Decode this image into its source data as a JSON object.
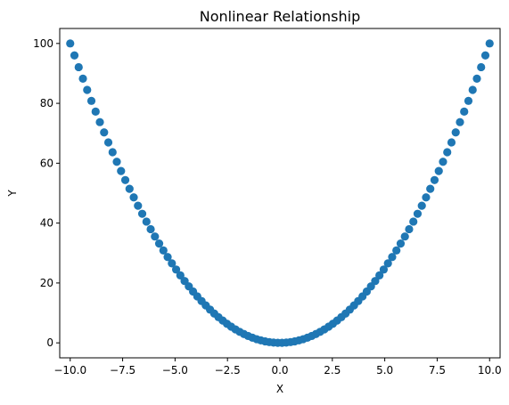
{
  "chart_data": {
    "type": "scatter",
    "title": "Nonlinear Relationship",
    "xlabel": "X",
    "ylabel": "Y",
    "xlim": [
      -10.5,
      10.5
    ],
    "ylim": [
      -5,
      105
    ],
    "xticks": [
      -10.0,
      -7.5,
      -5.0,
      -2.5,
      0.0,
      2.5,
      5.0,
      7.5,
      10.0
    ],
    "xtick_labels": [
      "−10.0",
      "−7.5",
      "−5.0",
      "−2.5",
      "0.0",
      "2.5",
      "5.0",
      "7.5",
      "10.0"
    ],
    "yticks": [
      0,
      20,
      40,
      60,
      80,
      100
    ],
    "ytick_labels": [
      "0",
      "20",
      "40",
      "60",
      "80",
      "100"
    ],
    "grid": false,
    "marker_color": "#1f77b4",
    "x": [
      -10.0,
      -9.798,
      -9.596,
      -9.394,
      -9.192,
      -8.99,
      -8.788,
      -8.586,
      -8.384,
      -8.182,
      -7.98,
      -7.778,
      -7.576,
      -7.374,
      -7.172,
      -6.97,
      -6.768,
      -6.566,
      -6.364,
      -6.162,
      -5.96,
      -5.758,
      -5.556,
      -5.354,
      -5.152,
      -4.949,
      -4.747,
      -4.545,
      -4.343,
      -4.141,
      -3.939,
      -3.737,
      -3.535,
      -3.333,
      -3.131,
      -2.929,
      -2.727,
      -2.525,
      -2.323,
      -2.121,
      -1.919,
      -1.717,
      -1.515,
      -1.313,
      -1.111,
      -0.909,
      -0.707,
      -0.505,
      -0.303,
      -0.101,
      0.101,
      0.303,
      0.505,
      0.707,
      0.909,
      1.111,
      1.313,
      1.515,
      1.717,
      1.919,
      2.121,
      2.323,
      2.525,
      2.727,
      2.929,
      3.131,
      3.333,
      3.535,
      3.737,
      3.939,
      4.141,
      4.343,
      4.545,
      4.747,
      4.949,
      5.152,
      5.354,
      5.556,
      5.758,
      5.96,
      6.162,
      6.364,
      6.566,
      6.768,
      6.97,
      7.172,
      7.374,
      7.576,
      7.778,
      7.98,
      8.182,
      8.384,
      8.586,
      8.788,
      8.99,
      9.192,
      9.394,
      9.596,
      9.798,
      10.0
    ],
    "y": [
      100.0,
      96.0,
      92.08,
      88.25,
      84.49,
      80.82,
      77.23,
      73.72,
      70.29,
      66.94,
      63.68,
      60.49,
      57.39,
      54.37,
      51.44,
      48.58,
      45.81,
      43.11,
      40.5,
      37.97,
      35.52,
      33.16,
      30.86,
      28.66,
      26.54,
      24.49,
      22.53,
      20.66,
      18.86,
      17.15,
      15.52,
      13.97,
      12.5,
      11.11,
      9.8,
      8.58,
      7.44,
      6.38,
      5.4,
      4.5,
      3.68,
      2.95,
      2.3,
      1.72,
      1.23,
      0.83,
      0.5,
      0.26,
      0.09,
      0.01,
      0.01,
      0.09,
      0.26,
      0.5,
      0.83,
      1.23,
      1.72,
      2.3,
      2.95,
      3.68,
      4.5,
      5.4,
      6.38,
      7.44,
      8.58,
      9.8,
      11.11,
      12.5,
      13.97,
      15.52,
      17.15,
      18.86,
      20.66,
      22.53,
      24.49,
      26.54,
      28.66,
      30.86,
      33.16,
      35.52,
      37.97,
      40.5,
      43.11,
      45.81,
      48.58,
      51.44,
      54.37,
      57.39,
      60.49,
      63.68,
      66.94,
      70.29,
      73.72,
      77.23,
      80.82,
      84.49,
      88.25,
      92.08,
      96.0,
      100.0
    ]
  }
}
